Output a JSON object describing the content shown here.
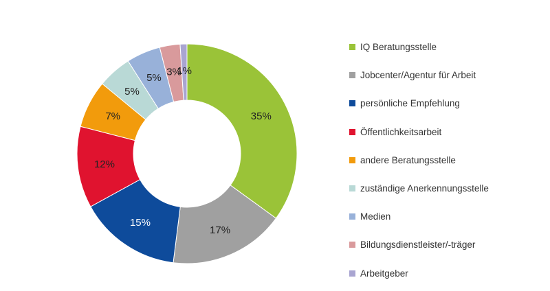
{
  "chart_data": {
    "type": "pie",
    "variant": "donut",
    "title": "",
    "legend_position": "right",
    "series": [
      {
        "name": "IQ Beratungsstelle",
        "value": 35,
        "label": "35%",
        "color": "#9ac338"
      },
      {
        "name": "Jobcenter/Agentur für Arbeit",
        "value": 17,
        "label": "17%",
        "color": "#a0a0a0"
      },
      {
        "name": "persönliche Empfehlung",
        "value": 15,
        "label": "15%",
        "color": "#0e4b9b"
      },
      {
        "name": "Öffentlichkeitsarbeit",
        "value": 12,
        "label": "12%",
        "color": "#e0132f"
      },
      {
        "name": "andere Beratungsstelle",
        "value": 7,
        "label": "7%",
        "color": "#f29b0c"
      },
      {
        "name": "zuständige Anerkennungsstelle",
        "value": 5,
        "label": "5%",
        "color": "#b9d9d6"
      },
      {
        "name": "Medien",
        "value": 5,
        "label": "5%",
        "color": "#98b1d9"
      },
      {
        "name": "Bildungsdienstleister/-träger",
        "value": 3,
        "label": "3%",
        "color": "#d99a9c"
      },
      {
        "name": "Arbeitgeber",
        "value": 1,
        "label": "1%",
        "color": "#a9a5d1"
      }
    ]
  }
}
